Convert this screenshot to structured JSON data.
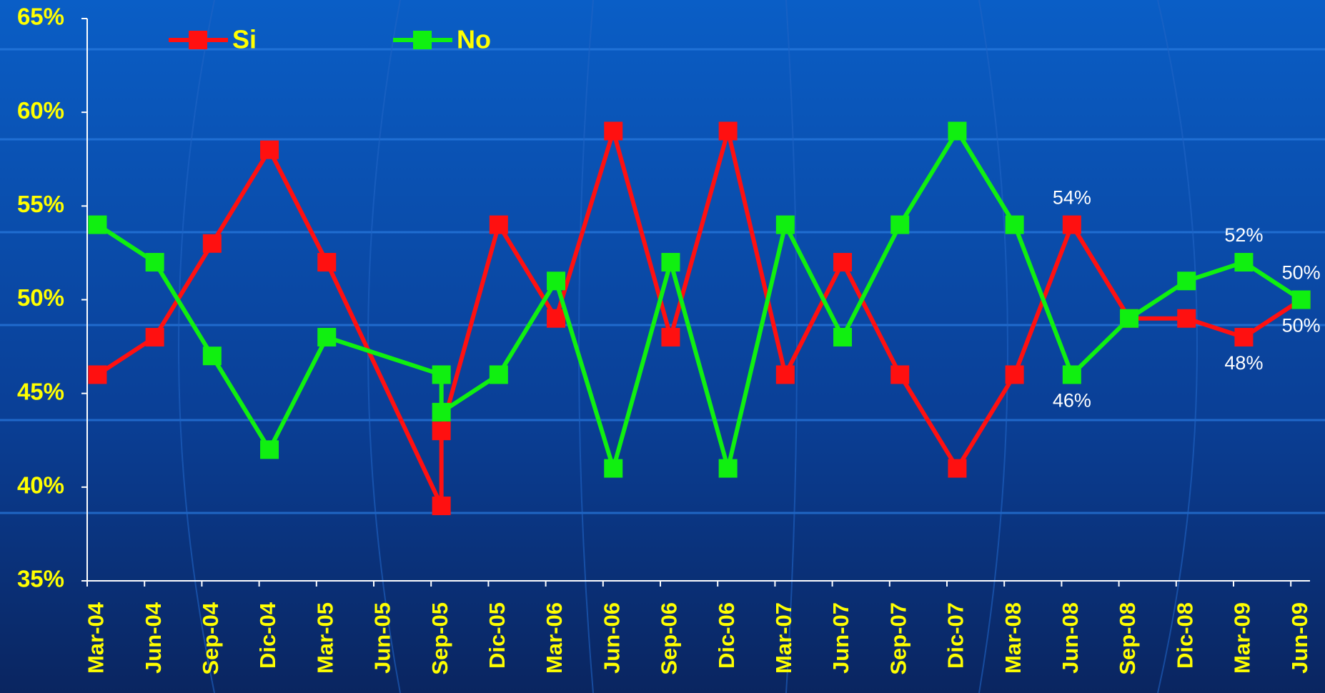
{
  "chart_data": {
    "type": "line",
    "categories": [
      "Mar-04",
      "Jun-04",
      "Sep-04",
      "Dic-04",
      "Mar-05",
      "Jun-05",
      "Sep-05",
      "Dic-05",
      "Mar-06",
      "Jun-06",
      "Sep-06",
      "Dic-06",
      "Mar-07",
      "Jun-07",
      "Sep-07",
      "Dic-07",
      "Mar-08",
      "Jun-08",
      "Sep-08",
      "Dic-08",
      "Mar-09",
      "Jun-09"
    ],
    "series": [
      {
        "name": "Si",
        "color": "#ff1010",
        "values": [
          46,
          48,
          53,
          58,
          52,
          null,
          [
            39,
            43
          ],
          54,
          49,
          59,
          48,
          59,
          46,
          52,
          46,
          41,
          46,
          54,
          49,
          49,
          48,
          50
        ],
        "value_labels": [
          null,
          null,
          null,
          null,
          null,
          null,
          null,
          null,
          null,
          null,
          null,
          null,
          null,
          null,
          null,
          null,
          null,
          "54%",
          null,
          null,
          "48%",
          "50%"
        ]
      },
      {
        "name": "No",
        "color": "#10f010",
        "values": [
          54,
          52,
          47,
          42,
          48,
          null,
          [
            46,
            44
          ],
          46,
          51,
          41,
          52,
          41,
          54,
          48,
          54,
          59,
          54,
          46,
          49,
          51,
          52,
          50
        ],
        "value_labels": [
          null,
          null,
          null,
          null,
          null,
          null,
          null,
          null,
          null,
          null,
          null,
          null,
          null,
          null,
          null,
          null,
          null,
          "46%",
          null,
          null,
          "52%",
          "50%"
        ]
      }
    ],
    "ylim": [
      35,
      65
    ],
    "yticks": [
      {
        "value": 35,
        "label": "35%"
      },
      {
        "value": 40,
        "label": "40%"
      },
      {
        "value": 45,
        "label": "45%"
      },
      {
        "value": 50,
        "label": "50%"
      },
      {
        "value": 55,
        "label": "55%"
      },
      {
        "value": 60,
        "label": "60%"
      },
      {
        "value": 65,
        "label": "65%"
      }
    ],
    "connect_gaps": true,
    "grid": false,
    "legend": "top"
  }
}
